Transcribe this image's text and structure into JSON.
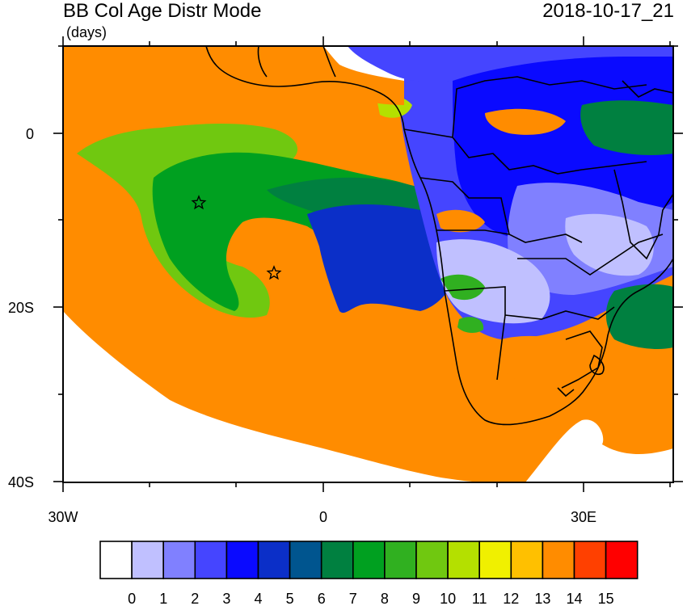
{
  "title": "BB Col Age Distr Mode",
  "units": "(days)",
  "timestamp": "2018-10-17_21",
  "y_axis_labels": [
    "0",
    "20S",
    "40S"
  ],
  "x_axis_labels": [
    "30W",
    "0",
    "30E"
  ],
  "colorbar": {
    "labels": [
      "0",
      "1",
      "2",
      "3",
      "4",
      "5",
      "6",
      "7",
      "8",
      "9",
      "10",
      "11",
      "12",
      "13",
      "14",
      "15"
    ],
    "colors": [
      "#ffffff",
      "#c0c0ff",
      "#8080ff",
      "#4545ff",
      "#0a0aff",
      "#0b2fc8",
      "#00558f",
      "#008040",
      "#00a020",
      "#30b020",
      "#70c810",
      "#b4e000",
      "#f0f000",
      "#ffc000",
      "#ff8c00",
      "#ff4000",
      "#ff0000"
    ]
  },
  "map_colors": {
    "white": "#ffffff",
    "orange": "#ff8c00",
    "light_green": "#70c810",
    "green": "#00a020",
    "dark_green": "#008040",
    "blue": "#0b2fc8",
    "med_blue": "#4545ff",
    "light_blue": "#8080ff",
    "pale_blue": "#c0c0ff",
    "bright_blue": "#0a0aff",
    "yellow_green": "#b4e000"
  },
  "markers": [
    {
      "name": "star-marker-1",
      "lon": -14.5,
      "lat": -8
    },
    {
      "name": "star-marker-2",
      "lon": -5.5,
      "lat": -16
    }
  ]
}
